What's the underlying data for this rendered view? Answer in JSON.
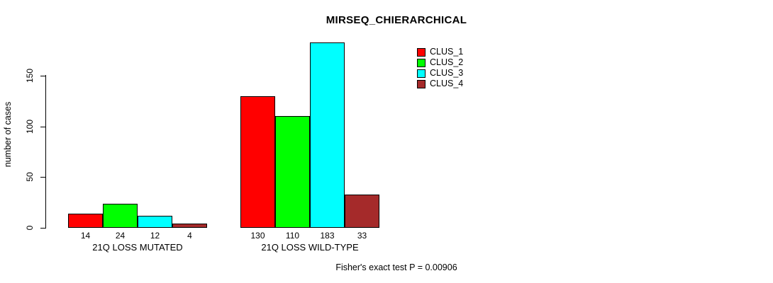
{
  "chart_data": {
    "type": "bar",
    "title": "MIRSEQ_CHIERARCHICAL",
    "categories": [
      "21Q LOSS MUTATED",
      "21Q LOSS WILD-TYPE"
    ],
    "series": [
      {
        "name": "CLUS_1",
        "color": "#FF0000",
        "values": [
          14,
          130
        ]
      },
      {
        "name": "CLUS_2",
        "color": "#00FF00",
        "values": [
          24,
          110
        ]
      },
      {
        "name": "CLUS_3",
        "color": "#00FFFF",
        "values": [
          12,
          183
        ]
      },
      {
        "name": "CLUS_4",
        "color": "#A52A2A",
        "values": [
          4,
          33
        ]
      }
    ],
    "xlabel": "",
    "ylabel": "number of cases",
    "yticks": [
      0,
      50,
      100,
      150
    ],
    "ylim": [
      0,
      190
    ],
    "grid": false,
    "bar_value_labels": true,
    "legend_position": "top-right",
    "legend_entries": [
      "CLUS_1",
      "CLUS_2",
      "CLUS_3",
      "CLUS_4"
    ],
    "annotation": "Fisher's exact test P = 0.00906",
    "axis_color": "#000000",
    "bar_border_color": "#000000"
  }
}
